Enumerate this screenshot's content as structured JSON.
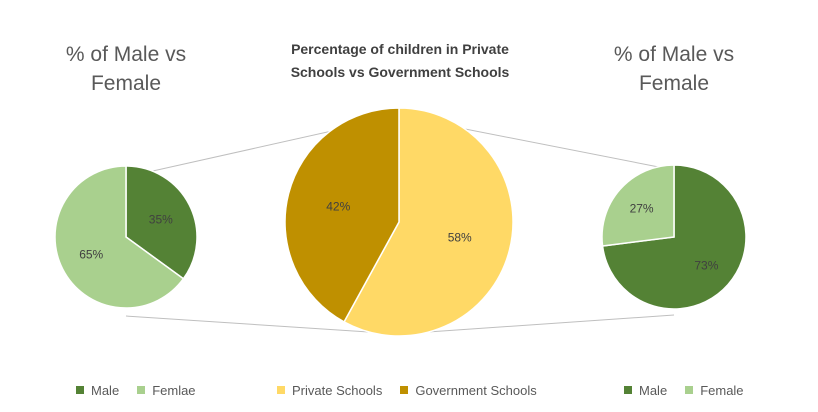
{
  "chart_data": [
    {
      "type": "pie",
      "title": "% of Male vs Female",
      "slices": [
        {
          "label": "Male",
          "value": 35,
          "display": "35%",
          "color": "#548235"
        },
        {
          "label": "Femlae",
          "value": 65,
          "display": "65%",
          "color": "#a9d08e"
        }
      ],
      "legend_position": "bottom"
    },
    {
      "type": "pie",
      "title": "Percentage of children in Private Schools vs Government Schools",
      "slices": [
        {
          "label": "Private Schools",
          "value": 58,
          "display": "58%",
          "color": "#ffd966"
        },
        {
          "label": "Government Schools",
          "value": 42,
          "display": "42%",
          "color": "#bf9000"
        }
      ],
      "legend_position": "bottom"
    },
    {
      "type": "pie",
      "title": "% of Male vs Female",
      "slices": [
        {
          "label": "Male",
          "value": 73,
          "display": "73%",
          "color": "#548235"
        },
        {
          "label": "Female",
          "value": 27,
          "display": "27%",
          "color": "#a9d08e"
        }
      ],
      "legend_position": "bottom"
    }
  ],
  "titles": {
    "left_line1": "% of Male vs",
    "left_line2": "Female",
    "center_line1": "Percentage of children in Private",
    "center_line2": "Schools vs Government Schools",
    "right_line1": "% of Male vs",
    "right_line2": "Female"
  },
  "legends": {
    "left": [
      {
        "label": "Male",
        "color": "#548235"
      },
      {
        "label": "Femlae",
        "color": "#a9d08e"
      }
    ],
    "center": [
      {
        "label": "Private Schools",
        "color": "#ffd966"
      },
      {
        "label": "Government Schools",
        "color": "#bf9000"
      }
    ],
    "right": [
      {
        "label": "Male",
        "color": "#548235"
      },
      {
        "label": "Female",
        "color": "#a9d08e"
      }
    ]
  },
  "colors": {
    "connector": "#bfbfbf",
    "label_text": "#404040",
    "slice_border": "#ffffff"
  }
}
